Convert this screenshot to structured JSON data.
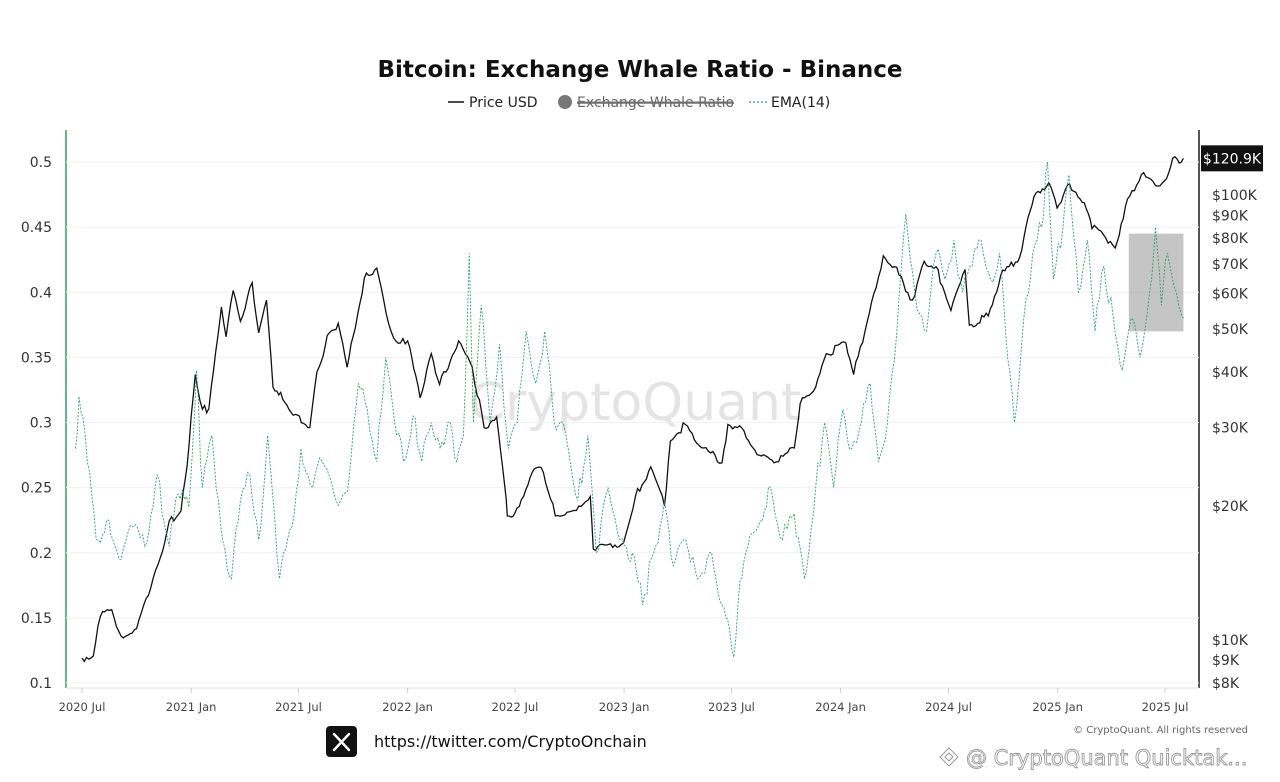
{
  "chart_data": {
    "type": "line",
    "title": "Bitcoin: Exchange Whale Ratio - Binance",
    "legend": {
      "position": "top-center",
      "items": [
        {
          "label": "Price USD",
          "color": "#111111",
          "style": "solid"
        },
        {
          "label": "Exchange Whale Ratio",
          "color": "#777777",
          "style": "hidden"
        },
        {
          "label": "EMA(14)",
          "color": "#2e9e6e",
          "style": "dashed"
        }
      ]
    },
    "x_ticks": [
      "2020 Jul",
      "2021 Jan",
      "2021 Jul",
      "2022 Jan",
      "2022 Jul",
      "2023 Jan",
      "2023 Jul",
      "2024 Jan",
      "2024 Jul",
      "2025 Jan",
      "2025 Jul"
    ],
    "left_axis": {
      "ticks": [
        "0.5",
        "0.45",
        "0.4",
        "0.35",
        "0.3",
        "0.25",
        "0.2",
        "0.15",
        "0.1"
      ],
      "ylim": [
        0.1,
        0.5
      ]
    },
    "right_axis": {
      "scale": "log",
      "ticks": [
        "$100K",
        "$90K",
        "$80K",
        "$70K",
        "$60K",
        "$50K",
        "$40K",
        "$30K",
        "$20K",
        "$10K",
        "$9K",
        "$8K"
      ],
      "ylim": [
        8000,
        125000
      ]
    },
    "current_price_label": "$120.9K",
    "highlight_range": {
      "from": "2025-05-01",
      "to": "2025-08-01",
      "ratio_min": 0.37,
      "ratio_max": 0.445
    },
    "series": [
      {
        "name": "Price USD",
        "axis": "right",
        "color": "#111111",
        "points": [
          [
            "2020-07-01",
            9100
          ],
          [
            "2020-07-20",
            9200
          ],
          [
            "2020-08-01",
            11300
          ],
          [
            "2020-08-20",
            11700
          ],
          [
            "2020-09-05",
            10200
          ],
          [
            "2020-10-01",
            10600
          ],
          [
            "2020-10-25",
            13100
          ],
          [
            "2020-11-10",
            15300
          ],
          [
            "2020-11-25",
            18500
          ],
          [
            "2020-12-15",
            19500
          ],
          [
            "2020-12-25",
            24500
          ],
          [
            "2021-01-08",
            39500
          ],
          [
            "2021-01-20",
            33000
          ],
          [
            "2021-01-31",
            33100
          ],
          [
            "2021-02-15",
            48000
          ],
          [
            "2021-02-21",
            56000
          ],
          [
            "2021-03-01",
            48000
          ],
          [
            "2021-03-13",
            61000
          ],
          [
            "2021-03-25",
            52000
          ],
          [
            "2021-04-14",
            63500
          ],
          [
            "2021-04-25",
            49000
          ],
          [
            "2021-05-08",
            58000
          ],
          [
            "2021-05-19",
            37000
          ],
          [
            "2021-06-01",
            36000
          ],
          [
            "2021-06-22",
            32000
          ],
          [
            "2021-07-20",
            30000
          ],
          [
            "2021-08-01",
            40000
          ],
          [
            "2021-08-22",
            49000
          ],
          [
            "2021-09-06",
            51500
          ],
          [
            "2021-09-21",
            41000
          ],
          [
            "2021-10-01",
            48000
          ],
          [
            "2021-10-20",
            65000
          ],
          [
            "2021-11-10",
            68500
          ],
          [
            "2021-11-26",
            54000
          ],
          [
            "2021-12-05",
            49000
          ],
          [
            "2021-12-20",
            46500
          ],
          [
            "2022-01-01",
            47000
          ],
          [
            "2022-01-22",
            35000
          ],
          [
            "2022-02-10",
            44000
          ],
          [
            "2022-02-24",
            37500
          ],
          [
            "2022-03-28",
            47000
          ],
          [
            "2022-04-20",
            41000
          ],
          [
            "2022-05-10",
            30000
          ],
          [
            "2022-05-31",
            31700
          ],
          [
            "2022-06-14",
            22000
          ],
          [
            "2022-06-18",
            19000
          ],
          [
            "2022-07-01",
            19300
          ],
          [
            "2022-07-30",
            23800
          ],
          [
            "2022-08-14",
            24400
          ],
          [
            "2022-09-07",
            19000
          ],
          [
            "2022-10-01",
            19400
          ],
          [
            "2022-11-05",
            21000
          ],
          [
            "2022-11-10",
            16000
          ],
          [
            "2022-12-31",
            16500
          ],
          [
            "2023-01-20",
            21000
          ],
          [
            "2023-02-15",
            24500
          ],
          [
            "2023-03-10",
            20000
          ],
          [
            "2023-03-20",
            28000
          ],
          [
            "2023-04-14",
            30500
          ],
          [
            "2023-05-15",
            27000
          ],
          [
            "2023-06-15",
            25000
          ],
          [
            "2023-06-25",
            30500
          ],
          [
            "2023-07-15",
            30300
          ],
          [
            "2023-08-17",
            26000
          ],
          [
            "2023-09-11",
            25000
          ],
          [
            "2023-10-15",
            27000
          ],
          [
            "2023-10-25",
            34000
          ],
          [
            "2023-11-20",
            37000
          ],
          [
            "2023-12-08",
            44000
          ],
          [
            "2024-01-10",
            46500
          ],
          [
            "2024-01-23",
            39500
          ],
          [
            "2024-02-15",
            52000
          ],
          [
            "2024-03-01",
            62000
          ],
          [
            "2024-03-13",
            73000
          ],
          [
            "2024-04-01",
            69000
          ],
          [
            "2024-05-01",
            58000
          ],
          [
            "2024-05-21",
            71000
          ],
          [
            "2024-06-10",
            69000
          ],
          [
            "2024-07-05",
            55000
          ],
          [
            "2024-07-29",
            68000
          ],
          [
            "2024-08-05",
            51000
          ],
          [
            "2024-09-06",
            53500
          ],
          [
            "2024-09-27",
            66000
          ],
          [
            "2024-10-29",
            72500
          ],
          [
            "2024-11-12",
            89000
          ],
          [
            "2024-11-22",
            99000
          ],
          [
            "2024-12-17",
            106500
          ],
          [
            "2024-12-31",
            93500
          ],
          [
            "2025-01-21",
            106000
          ],
          [
            "2025-02-15",
            96000
          ],
          [
            "2025-02-28",
            84000
          ],
          [
            "2025-03-15",
            83000
          ],
          [
            "2025-04-08",
            76000
          ],
          [
            "2025-04-25",
            94000
          ],
          [
            "2025-05-22",
            111000
          ],
          [
            "2025-06-15",
            105000
          ],
          [
            "2025-06-30",
            107500
          ],
          [
            "2025-07-14",
            121000
          ],
          [
            "2025-07-25",
            118000
          ],
          [
            "2025-08-01",
            120900
          ]
        ]
      },
      {
        "name": "EMA(14)",
        "axis": "left",
        "color": "#2e9e6e",
        "points": [
          [
            "2020-06-20",
            0.28
          ],
          [
            "2020-06-26",
            0.32
          ],
          [
            "2020-07-10",
            0.27
          ],
          [
            "2020-07-25",
            0.21
          ],
          [
            "2020-08-15",
            0.225
          ],
          [
            "2020-09-05",
            0.195
          ],
          [
            "2020-09-25",
            0.22
          ],
          [
            "2020-10-15",
            0.205
          ],
          [
            "2020-11-05",
            0.26
          ],
          [
            "2020-11-25",
            0.205
          ],
          [
            "2020-12-10",
            0.245
          ],
          [
            "2020-12-28",
            0.235
          ],
          [
            "2021-01-10",
            0.34
          ],
          [
            "2021-01-20",
            0.25
          ],
          [
            "2021-02-05",
            0.29
          ],
          [
            "2021-02-20",
            0.22
          ],
          [
            "2021-03-10",
            0.18
          ],
          [
            "2021-03-25",
            0.24
          ],
          [
            "2021-04-10",
            0.26
          ],
          [
            "2021-04-25",
            0.21
          ],
          [
            "2021-05-10",
            0.29
          ],
          [
            "2021-05-30",
            0.18
          ],
          [
            "2021-06-20",
            0.22
          ],
          [
            "2021-07-05",
            0.28
          ],
          [
            "2021-07-25",
            0.25
          ],
          [
            "2021-08-10",
            0.27
          ],
          [
            "2021-08-25",
            0.255
          ],
          [
            "2021-09-10",
            0.24
          ],
          [
            "2021-09-25",
            0.26
          ],
          [
            "2021-10-10",
            0.33
          ],
          [
            "2021-10-25",
            0.31
          ],
          [
            "2021-11-10",
            0.27
          ],
          [
            "2021-11-25",
            0.35
          ],
          [
            "2021-12-10",
            0.3
          ],
          [
            "2021-12-25",
            0.27
          ],
          [
            "2022-01-10",
            0.305
          ],
          [
            "2022-01-25",
            0.27
          ],
          [
            "2022-02-10",
            0.3
          ],
          [
            "2022-02-25",
            0.28
          ],
          [
            "2022-03-10",
            0.3
          ],
          [
            "2022-03-25",
            0.27
          ],
          [
            "2022-04-05",
            0.29
          ],
          [
            "2022-04-15",
            0.43
          ],
          [
            "2022-04-22",
            0.3
          ],
          [
            "2022-05-05",
            0.39
          ],
          [
            "2022-05-20",
            0.3
          ],
          [
            "2022-06-05",
            0.36
          ],
          [
            "2022-06-20",
            0.28
          ],
          [
            "2022-07-05",
            0.3
          ],
          [
            "2022-07-20",
            0.37
          ],
          [
            "2022-08-05",
            0.33
          ],
          [
            "2022-08-20",
            0.37
          ],
          [
            "2022-09-05",
            0.3
          ],
          [
            "2022-09-25",
            0.29
          ],
          [
            "2022-10-15",
            0.24
          ],
          [
            "2022-11-01",
            0.29
          ],
          [
            "2022-11-15",
            0.2
          ],
          [
            "2022-12-05",
            0.25
          ],
          [
            "2022-12-25",
            0.21
          ],
          [
            "2023-01-15",
            0.2
          ],
          [
            "2023-02-01",
            0.16
          ],
          [
            "2023-02-20",
            0.2
          ],
          [
            "2023-03-10",
            0.24
          ],
          [
            "2023-03-25",
            0.19
          ],
          [
            "2023-04-15",
            0.21
          ],
          [
            "2023-05-05",
            0.18
          ],
          [
            "2023-05-25",
            0.2
          ],
          [
            "2023-06-15",
            0.16
          ],
          [
            "2023-06-28",
            0.14
          ],
          [
            "2023-07-05",
            0.12
          ],
          [
            "2023-07-12",
            0.16
          ],
          [
            "2023-07-25",
            0.2
          ],
          [
            "2023-08-15",
            0.22
          ],
          [
            "2023-09-05",
            0.25
          ],
          [
            "2023-09-25",
            0.21
          ],
          [
            "2023-10-15",
            0.23
          ],
          [
            "2023-11-01",
            0.18
          ],
          [
            "2023-11-20",
            0.25
          ],
          [
            "2023-12-05",
            0.3
          ],
          [
            "2023-12-20",
            0.25
          ],
          [
            "2024-01-05",
            0.31
          ],
          [
            "2024-01-20",
            0.28
          ],
          [
            "2024-02-05",
            0.3
          ],
          [
            "2024-02-20",
            0.33
          ],
          [
            "2024-03-05",
            0.27
          ],
          [
            "2024-03-20",
            0.3
          ],
          [
            "2024-04-05",
            0.37
          ],
          [
            "2024-04-20",
            0.46
          ],
          [
            "2024-05-05",
            0.4
          ],
          [
            "2024-05-25",
            0.37
          ],
          [
            "2024-06-10",
            0.43
          ],
          [
            "2024-06-25",
            0.41
          ],
          [
            "2024-07-10",
            0.44
          ],
          [
            "2024-07-25",
            0.4
          ],
          [
            "2024-08-10",
            0.42
          ],
          [
            "2024-08-25",
            0.44
          ],
          [
            "2024-09-10",
            0.41
          ],
          [
            "2024-09-25",
            0.43
          ],
          [
            "2024-10-05",
            0.37
          ],
          [
            "2024-10-20",
            0.3
          ],
          [
            "2024-11-05",
            0.38
          ],
          [
            "2024-11-20",
            0.43
          ],
          [
            "2024-12-05",
            0.45
          ],
          [
            "2024-12-15",
            0.5
          ],
          [
            "2024-12-25",
            0.41
          ],
          [
            "2025-01-10",
            0.45
          ],
          [
            "2025-01-20",
            0.49
          ],
          [
            "2025-02-05",
            0.4
          ],
          [
            "2025-02-20",
            0.44
          ],
          [
            "2025-03-05",
            0.37
          ],
          [
            "2025-03-20",
            0.42
          ],
          [
            "2025-04-05",
            0.38
          ],
          [
            "2025-04-20",
            0.34
          ],
          [
            "2025-05-05",
            0.38
          ],
          [
            "2025-05-20",
            0.35
          ],
          [
            "2025-06-05",
            0.4
          ],
          [
            "2025-06-15",
            0.45
          ],
          [
            "2025-06-25",
            0.39
          ],
          [
            "2025-07-05",
            0.43
          ],
          [
            "2025-07-20",
            0.4
          ],
          [
            "2025-08-01",
            0.38
          ]
        ]
      }
    ]
  },
  "watermark_text": "CryptoQuant",
  "copyright_text": "© CryptoQuant. All rights reserved",
  "footer": {
    "x_icon": "x-logo-icon",
    "url": "https://twitter.com/CryptoOnchain",
    "watermark": "@ CryptoQuant Quicktak..."
  }
}
